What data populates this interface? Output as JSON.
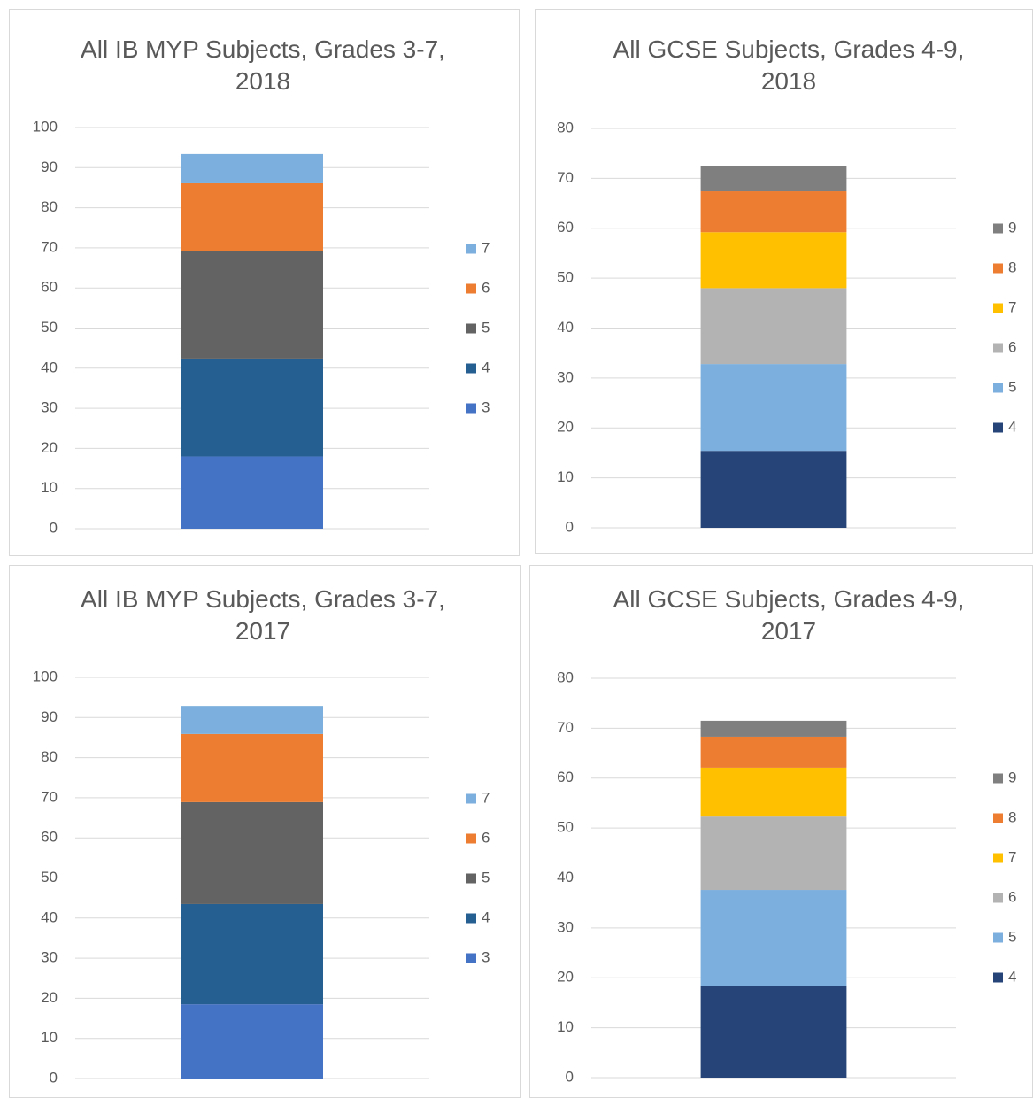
{
  "chart_data": [
    {
      "type": "bar",
      "stacked": true,
      "title": "All IB MYP Subjects, Grades 3-7, 2018",
      "categories": [
        null
      ],
      "series": [
        {
          "name": "3",
          "color": "#4472c4",
          "values": [
            18
          ]
        },
        {
          "name": "4",
          "color": "#255e91",
          "values": [
            24.4
          ]
        },
        {
          "name": "5",
          "color": "#636363",
          "values": [
            26.7
          ]
        },
        {
          "name": "6",
          "color": "#ed7d31",
          "values": [
            17
          ]
        },
        {
          "name": "7",
          "color": "#7cafdd",
          "values": [
            7.3
          ]
        }
      ],
      "ylim": [
        0,
        100
      ],
      "yticks": [
        0,
        10,
        20,
        30,
        40,
        50,
        60,
        70,
        80,
        90,
        100
      ],
      "grid": true,
      "legend": "right"
    },
    {
      "type": "bar",
      "stacked": true,
      "title": "All GCSE Subjects, Grades 4-9, 2018",
      "categories": [
        null
      ],
      "series": [
        {
          "name": "4",
          "color": "#264478",
          "values": [
            15.4
          ]
        },
        {
          "name": "5",
          "color": "#7cafdd",
          "values": [
            17.4
          ]
        },
        {
          "name": "6",
          "color": "#b3b3b3",
          "values": [
            15.2
          ]
        },
        {
          "name": "7",
          "color": "#ffc000",
          "values": [
            11.2
          ]
        },
        {
          "name": "8",
          "color": "#ed7d31",
          "values": [
            8.2
          ]
        },
        {
          "name": "9",
          "color": "#7f7f7f",
          "values": [
            5.1
          ]
        }
      ],
      "ylim": [
        0,
        80
      ],
      "yticks": [
        0,
        10,
        20,
        30,
        40,
        50,
        60,
        70,
        80
      ],
      "grid": true,
      "legend": "right"
    },
    {
      "type": "bar",
      "stacked": true,
      "title": "All IB MYP Subjects, Grades 3-7, 2017",
      "categories": [
        null
      ],
      "series": [
        {
          "name": "3",
          "color": "#4472c4",
          "values": [
            18.5
          ]
        },
        {
          "name": "4",
          "color": "#255e91",
          "values": [
            25
          ]
        },
        {
          "name": "5",
          "color": "#636363",
          "values": [
            25.4
          ]
        },
        {
          "name": "6",
          "color": "#ed7d31",
          "values": [
            17
          ]
        },
        {
          "name": "7",
          "color": "#7cafdd",
          "values": [
            7
          ]
        }
      ],
      "ylim": [
        0,
        100
      ],
      "yticks": [
        0,
        10,
        20,
        30,
        40,
        50,
        60,
        70,
        80,
        90,
        100
      ],
      "grid": true,
      "legend": "right"
    },
    {
      "type": "bar",
      "stacked": true,
      "title": "All GCSE Subjects, Grades 4-9, 2017",
      "categories": [
        null
      ],
      "series": [
        {
          "name": "4",
          "color": "#264478",
          "values": [
            18.3
          ]
        },
        {
          "name": "5",
          "color": "#7cafdd",
          "values": [
            19.3
          ]
        },
        {
          "name": "6",
          "color": "#b3b3b3",
          "values": [
            14.7
          ]
        },
        {
          "name": "7",
          "color": "#ffc000",
          "values": [
            9.8
          ]
        },
        {
          "name": "8",
          "color": "#ed7d31",
          "values": [
            6.2
          ]
        },
        {
          "name": "9",
          "color": "#7f7f7f",
          "values": [
            3.2
          ]
        }
      ],
      "ylim": [
        0,
        80
      ],
      "yticks": [
        0,
        10,
        20,
        30,
        40,
        50,
        60,
        70,
        80
      ],
      "grid": true,
      "legend": "right"
    }
  ]
}
